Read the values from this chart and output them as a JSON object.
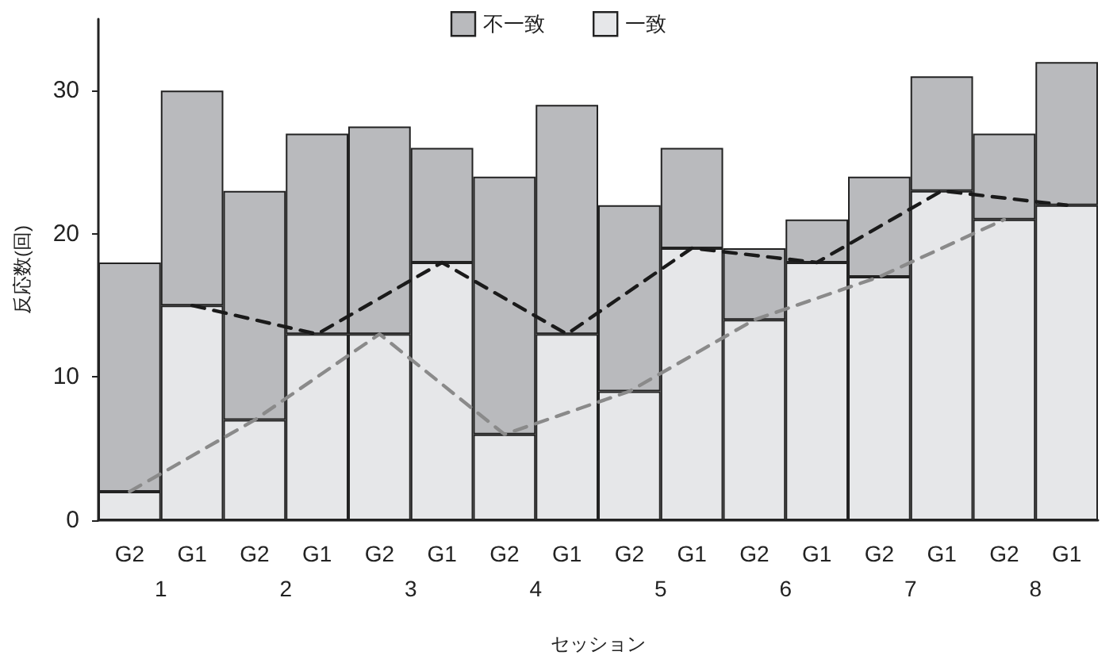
{
  "chart_data": {
    "type": "bar",
    "stacked": true,
    "xlabel": "セッション",
    "ylabel": "反応数(回)",
    "categories": [
      "G2",
      "G1",
      "G2",
      "G1",
      "G2",
      "G1",
      "G2",
      "G1",
      "G2",
      "G1",
      "G2",
      "G1",
      "G2",
      "G1",
      "G2",
      "G1"
    ],
    "series": [
      {
        "name": "一致",
        "color": "#e6e7e9",
        "values": [
          2,
          15,
          7,
          13,
          13,
          18,
          6,
          13,
          9,
          19,
          14,
          18,
          17,
          23,
          21,
          22
        ]
      },
      {
        "name": "不一致",
        "color": "#b9babd",
        "values": [
          16,
          15,
          16,
          14,
          14.5,
          8,
          18,
          16,
          13,
          7,
          5,
          3,
          7,
          8,
          6,
          10
        ]
      },
      {
        "type": "line",
        "color": "#1a1a1a",
        "line_style": "dashed",
        "marker": "none",
        "values": [
          null,
          15,
          null,
          13,
          null,
          18,
          null,
          13,
          null,
          19,
          null,
          18,
          null,
          23,
          null,
          22
        ]
      },
      {
        "type": "line",
        "color": "#8a8a8a",
        "line_style": "dashed",
        "marker": "none",
        "values": [
          2,
          null,
          7,
          null,
          13,
          null,
          6,
          null,
          9,
          null,
          14,
          null,
          17,
          null,
          21,
          null
        ]
      }
    ],
    "annotations": [
      "1",
      "2",
      "3",
      "4",
      "5",
      "6",
      "7",
      "8"
    ],
    "ylim": [
      0,
      35
    ],
    "yticks": [
      0,
      10,
      20,
      30
    ],
    "grid": false,
    "legend": "top"
  }
}
